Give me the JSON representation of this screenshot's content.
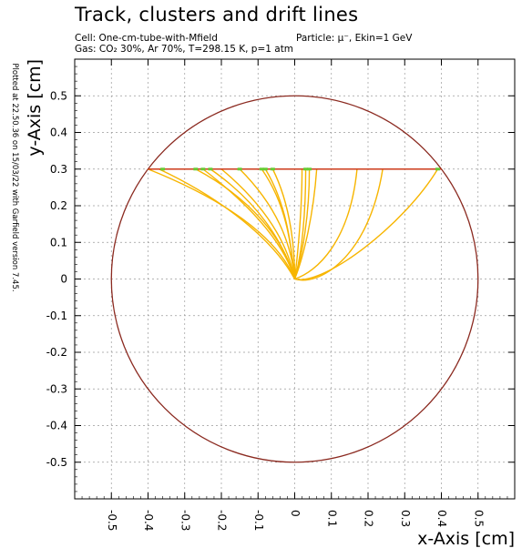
{
  "header": {
    "title": "Track, clusters and drift lines",
    "cell_line": "Cell: One-cm-tube-with-Mfield",
    "particle_line": "Particle: μ⁻, Ekin=1 GeV",
    "gas_line": "Gas: CO₂ 30%, Ar 70%, T=298.15 K, p=1 atm",
    "side_note": "Plotted at 22.50.36 on 15/03/22 with Garfield version 7.45."
  },
  "colors": {
    "tube": "#8b2a20",
    "track": "#cc3a1a",
    "drift": "#f7b500",
    "cluster": "#66cc33",
    "grid": "#9a9a9a"
  },
  "chart_data": {
    "type": "line",
    "xlabel": "x-Axis [cm]",
    "ylabel": "y-Axis [cm]",
    "xlim": [
      -0.6,
      0.6
    ],
    "ylim": [
      -0.6,
      0.6
    ],
    "grid": true,
    "xticks": [
      "-0.5",
      "-0.4",
      "-0.3",
      "-0.2",
      "-0.1",
      "0",
      "0.1",
      "0.2",
      "0.3",
      "0.4",
      "0.5"
    ],
    "yticks": [
      "-0.5",
      "-0.4",
      "-0.3",
      "-0.2",
      "-0.1",
      "0",
      "0.1",
      "0.2",
      "0.3",
      "0.4",
      "0.5"
    ],
    "tube": {
      "cx": 0,
      "cy": 0,
      "r": 0.5
    },
    "track": {
      "x": [
        -0.4,
        0.4
      ],
      "y": [
        0.3,
        0.3
      ]
    },
    "clusters_x": [
      -0.36,
      -0.27,
      -0.25,
      -0.23,
      -0.15,
      -0.09,
      -0.08,
      -0.06,
      0.03,
      0.04,
      0.39
    ],
    "drift_lines": [
      {
        "x": [
          -0.4,
          -0.2,
          -0.05,
          0.0
        ],
        "y": [
          0.3,
          0.22,
          0.12,
          0.0
        ]
      },
      {
        "x": [
          -0.37,
          -0.2,
          -0.06,
          0.0
        ],
        "y": [
          0.3,
          0.22,
          0.11,
          0.0
        ]
      },
      {
        "x": [
          -0.27,
          -0.12,
          -0.03,
          0.0
        ],
        "y": [
          0.3,
          0.22,
          0.11,
          0.0
        ]
      },
      {
        "x": [
          -0.25,
          -0.12,
          -0.03,
          0.0
        ],
        "y": [
          0.3,
          0.2,
          0.1,
          0.0
        ]
      },
      {
        "x": [
          -0.23,
          -0.1,
          -0.03,
          0.0
        ],
        "y": [
          0.3,
          0.21,
          0.1,
          0.0
        ]
      },
      {
        "x": [
          -0.2,
          -0.08,
          -0.02,
          0.0
        ],
        "y": [
          0.3,
          0.2,
          0.1,
          0.0
        ]
      },
      {
        "x": [
          -0.15,
          -0.05,
          -0.01,
          0.0
        ],
        "y": [
          0.3,
          0.2,
          0.1,
          0.0
        ]
      },
      {
        "x": [
          -0.09,
          -0.02,
          -0.01,
          0.0
        ],
        "y": [
          0.3,
          0.2,
          0.09,
          0.0
        ]
      },
      {
        "x": [
          -0.08,
          -0.02,
          -0.01,
          0.0
        ],
        "y": [
          0.3,
          0.2,
          0.09,
          0.0
        ]
      },
      {
        "x": [
          -0.06,
          -0.01,
          0.0,
          0.0
        ],
        "y": [
          0.3,
          0.2,
          0.08,
          0.0
        ]
      },
      {
        "x": [
          0.02,
          0.02,
          0.01,
          0.0
        ],
        "y": [
          0.3,
          0.2,
          0.08,
          0.0
        ]
      },
      {
        "x": [
          0.03,
          0.03,
          0.02,
          0.0
        ],
        "y": [
          0.3,
          0.18,
          0.07,
          0.0
        ]
      },
      {
        "x": [
          0.04,
          0.04,
          0.02,
          0.0
        ],
        "y": [
          0.3,
          0.17,
          0.06,
          0.0
        ]
      },
      {
        "x": [
          0.06,
          0.05,
          0.02,
          0.0
        ],
        "y": [
          0.3,
          0.16,
          0.05,
          0.0
        ]
      },
      {
        "x": [
          0.17,
          0.15,
          0.06,
          0.0
        ],
        "y": [
          0.3,
          0.1,
          0.02,
          0.0
        ]
      },
      {
        "x": [
          0.24,
          0.2,
          0.06,
          0.0
        ],
        "y": [
          0.3,
          0.05,
          -0.02,
          0.0
        ]
      },
      {
        "x": [
          0.39,
          0.3,
          0.08,
          0.0
        ],
        "y": [
          0.3,
          0.15,
          -0.02,
          0.0
        ]
      }
    ]
  }
}
